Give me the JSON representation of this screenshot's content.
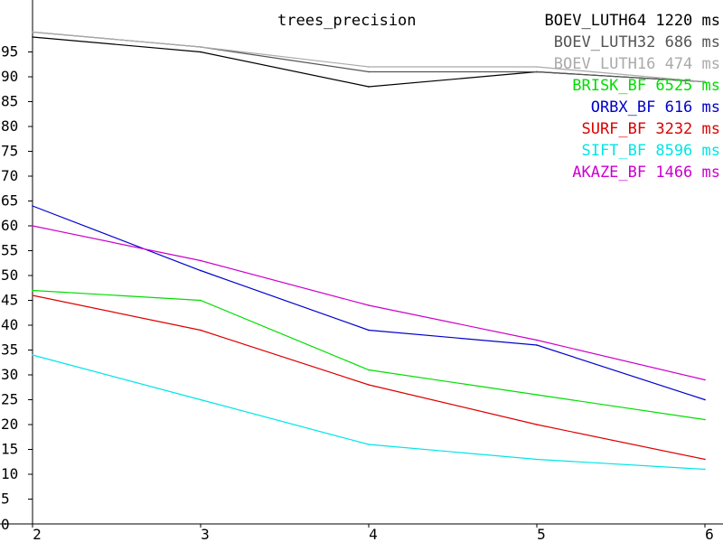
{
  "chart_data": {
    "type": "line",
    "title": "trees_precision",
    "x": [
      2,
      3,
      4,
      5,
      6
    ],
    "xlim": [
      2,
      6
    ],
    "ylim": [
      0,
      100
    ],
    "yticks": [
      0,
      5,
      10,
      15,
      20,
      25,
      30,
      35,
      40,
      45,
      50,
      55,
      60,
      65,
      70,
      75,
      80,
      85,
      90,
      95
    ],
    "grid": false,
    "legend_position": "top-right",
    "series": [
      {
        "name": "BOEV_LUTH64",
        "time": "1220",
        "unit": "ms",
        "color": "#000000",
        "values": [
          98,
          95,
          88,
          91,
          89
        ]
      },
      {
        "name": "BOEV_LUTH32",
        "time": "686",
        "unit": "ms",
        "color": "#555555",
        "values": [
          99,
          96,
          91,
          91,
          89
        ]
      },
      {
        "name": "BOEV_LUTH16",
        "time": "474",
        "unit": "ms",
        "color": "#aaaaaa",
        "values": [
          99,
          96,
          92,
          92,
          89
        ]
      },
      {
        "name": "BRISK_BF",
        "time": "6525",
        "unit": "ms",
        "color": "#00dd00",
        "values": [
          47,
          45,
          31,
          26,
          21
        ]
      },
      {
        "name": "ORBX_BF",
        "time": "616",
        "unit": "ms",
        "color": "#0000cc",
        "values": [
          64,
          51,
          39,
          36,
          25
        ]
      },
      {
        "name": "SURF_BF",
        "time": "3232",
        "unit": "ms",
        "color": "#dd0000",
        "values": [
          46,
          39,
          28,
          20,
          13
        ]
      },
      {
        "name": "SIFT_BF",
        "time": "8596",
        "unit": "ms",
        "color": "#00e5e5",
        "values": [
          34,
          25,
          16,
          13,
          11
        ]
      },
      {
        "name": "AKAZE_BF",
        "time": "1466",
        "unit": "ms",
        "color": "#cc00cc",
        "values": [
          60,
          53,
          44,
          37,
          29
        ]
      }
    ]
  }
}
